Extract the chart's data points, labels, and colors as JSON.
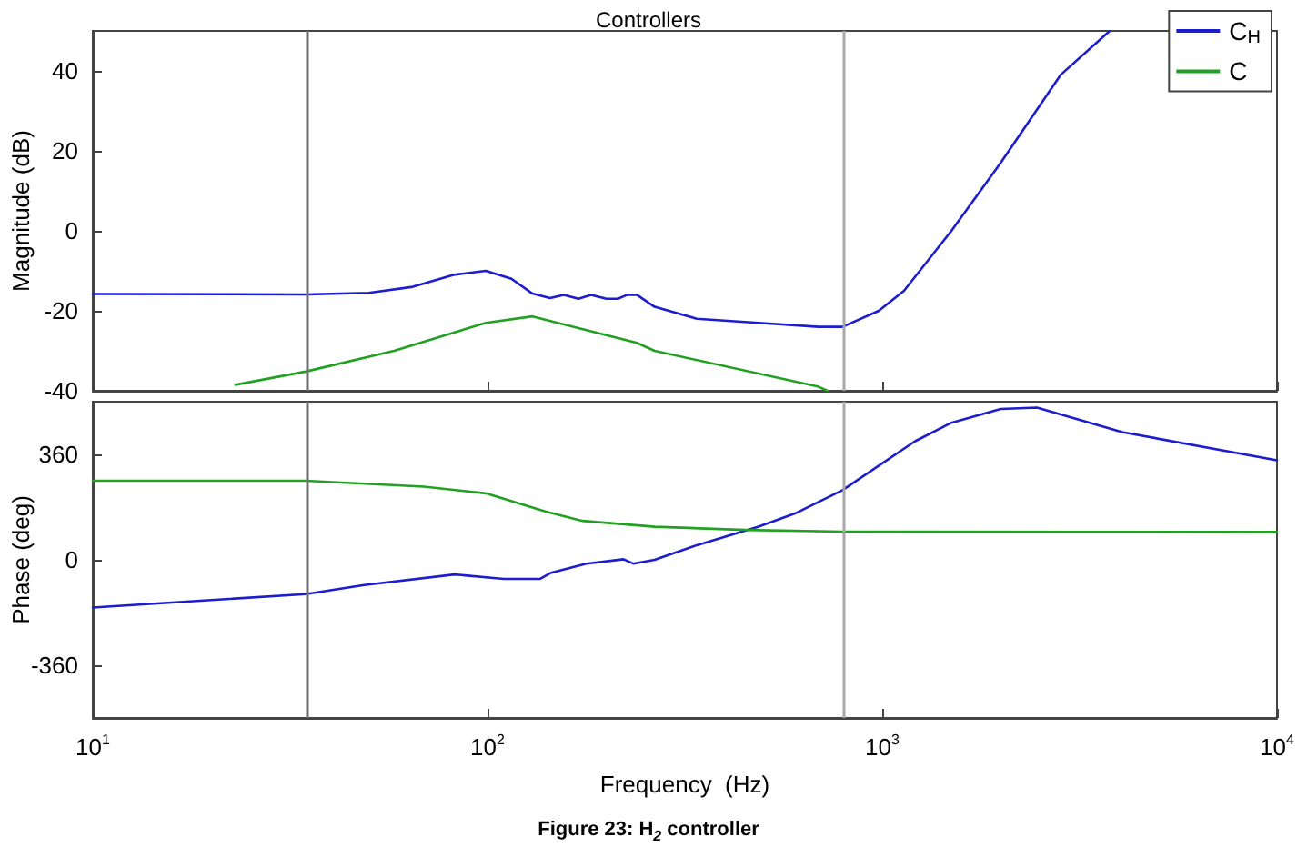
{
  "chart_data": [
    {
      "type": "line",
      "title": "Controllers",
      "ylabel": "Magnitude (dB)",
      "series": [
        {
          "name": "C$_{H}$",
          "color": "#1c1cd0",
          "x": [
            10,
            34.6,
            50,
            64.7,
            82,
            99,
            115,
            130,
            144,
            156,
            170,
            183,
            200,
            214,
            226,
            239,
            265,
            339,
            486,
            690,
            793,
            980,
            1135,
            1497,
            1995,
            2830,
            3770
          ],
          "values": [
            -15.8,
            -15.9,
            -15.5,
            -14,
            -11,
            -10,
            -12,
            -15.7,
            -16.8,
            -16,
            -17,
            -16,
            -17,
            -17,
            -16,
            -16,
            -19,
            -22,
            -23,
            -24,
            -24,
            -20,
            -15,
            0,
            17,
            39,
            50
          ]
        },
        {
          "name": "C",
          "color": "#22a022",
          "x": [
            23,
            34.6,
            58,
            99,
            130,
            239,
            265,
            690,
            727
          ],
          "values": [
            -38.5,
            -35.2,
            -30,
            -23,
            -21.4,
            -28,
            -30,
            -39,
            -40
          ]
        }
      ],
      "log": "x",
      "xlim": [
        10,
        10000
      ],
      "xticks": [
        {
          "value": 10,
          "label": null
        },
        {
          "value": 100,
          "label": null
        },
        {
          "value": 1000,
          "label": null
        },
        {
          "value": 10000,
          "label": null
        }
      ],
      "ylim": [
        -40,
        50
      ],
      "yticks": [
        -40,
        -20,
        0,
        20,
        40
      ],
      "tick_labels": "y",
      "grid": false,
      "legend": "top right",
      "line_style": "solid",
      "marker": "none",
      "ref_lines": [
        {
          "axis": "x",
          "value": 35,
          "label": null,
          "color": "#707070"
        },
        {
          "axis": "x",
          "value": 800,
          "label": null,
          "color": "#a8a8a8"
        }
      ]
    },
    {
      "type": "line",
      "xlabel": "Frequency  (Hz)",
      "ylabel": "Phase (deg)",
      "series": [
        {
          "color": "#1c1cd0",
          "x": [
            10,
            34.6,
            48.7,
            82.6,
            110,
            136,
            145,
            178,
            221,
            234,
            265,
            339,
            486,
            601,
            793,
            1211,
            1497,
            1995,
            2466,
            4055,
            10000
          ],
          "values": [
            -163,
            -117,
            -86,
            -50,
            -65,
            -65,
            -44,
            -13,
            2,
            -13,
            0,
            50,
            113,
            158,
            238,
            405,
            468,
            515,
            520,
            436,
            340
          ]
        },
        {
          "color": "#22a022",
          "x": [
            10,
            34.6,
            69,
            99,
            140,
            174,
            265,
            451,
            793,
            10000
          ],
          "values": [
            270,
            270,
            250,
            227,
            165,
            133,
            113,
            102,
            96,
            95
          ]
        }
      ],
      "log": "x",
      "xlim": [
        10,
        10000
      ],
      "xticks": [
        {
          "value": 10,
          "label": "10$^{1}$"
        },
        {
          "value": 100,
          "label": "10$^{2}$"
        },
        {
          "value": 1000,
          "label": "10$^{3}$"
        },
        {
          "value": 10000,
          "label": "10$^{4}$"
        }
      ],
      "ylim": [
        -540,
        540
      ],
      "yticks": [
        -360,
        0,
        360
      ],
      "grid": false,
      "line_style": "solid",
      "marker": "none",
      "ref_lines": [
        {
          "axis": "x",
          "value": 35,
          "label": null,
          "color": "#707070"
        },
        {
          "axis": "x",
          "value": 800,
          "label": null,
          "color": "#a8a8a8"
        }
      ],
      "annotations": [
        "Figure 23: H$_{2}$ controller"
      ]
    }
  ]
}
